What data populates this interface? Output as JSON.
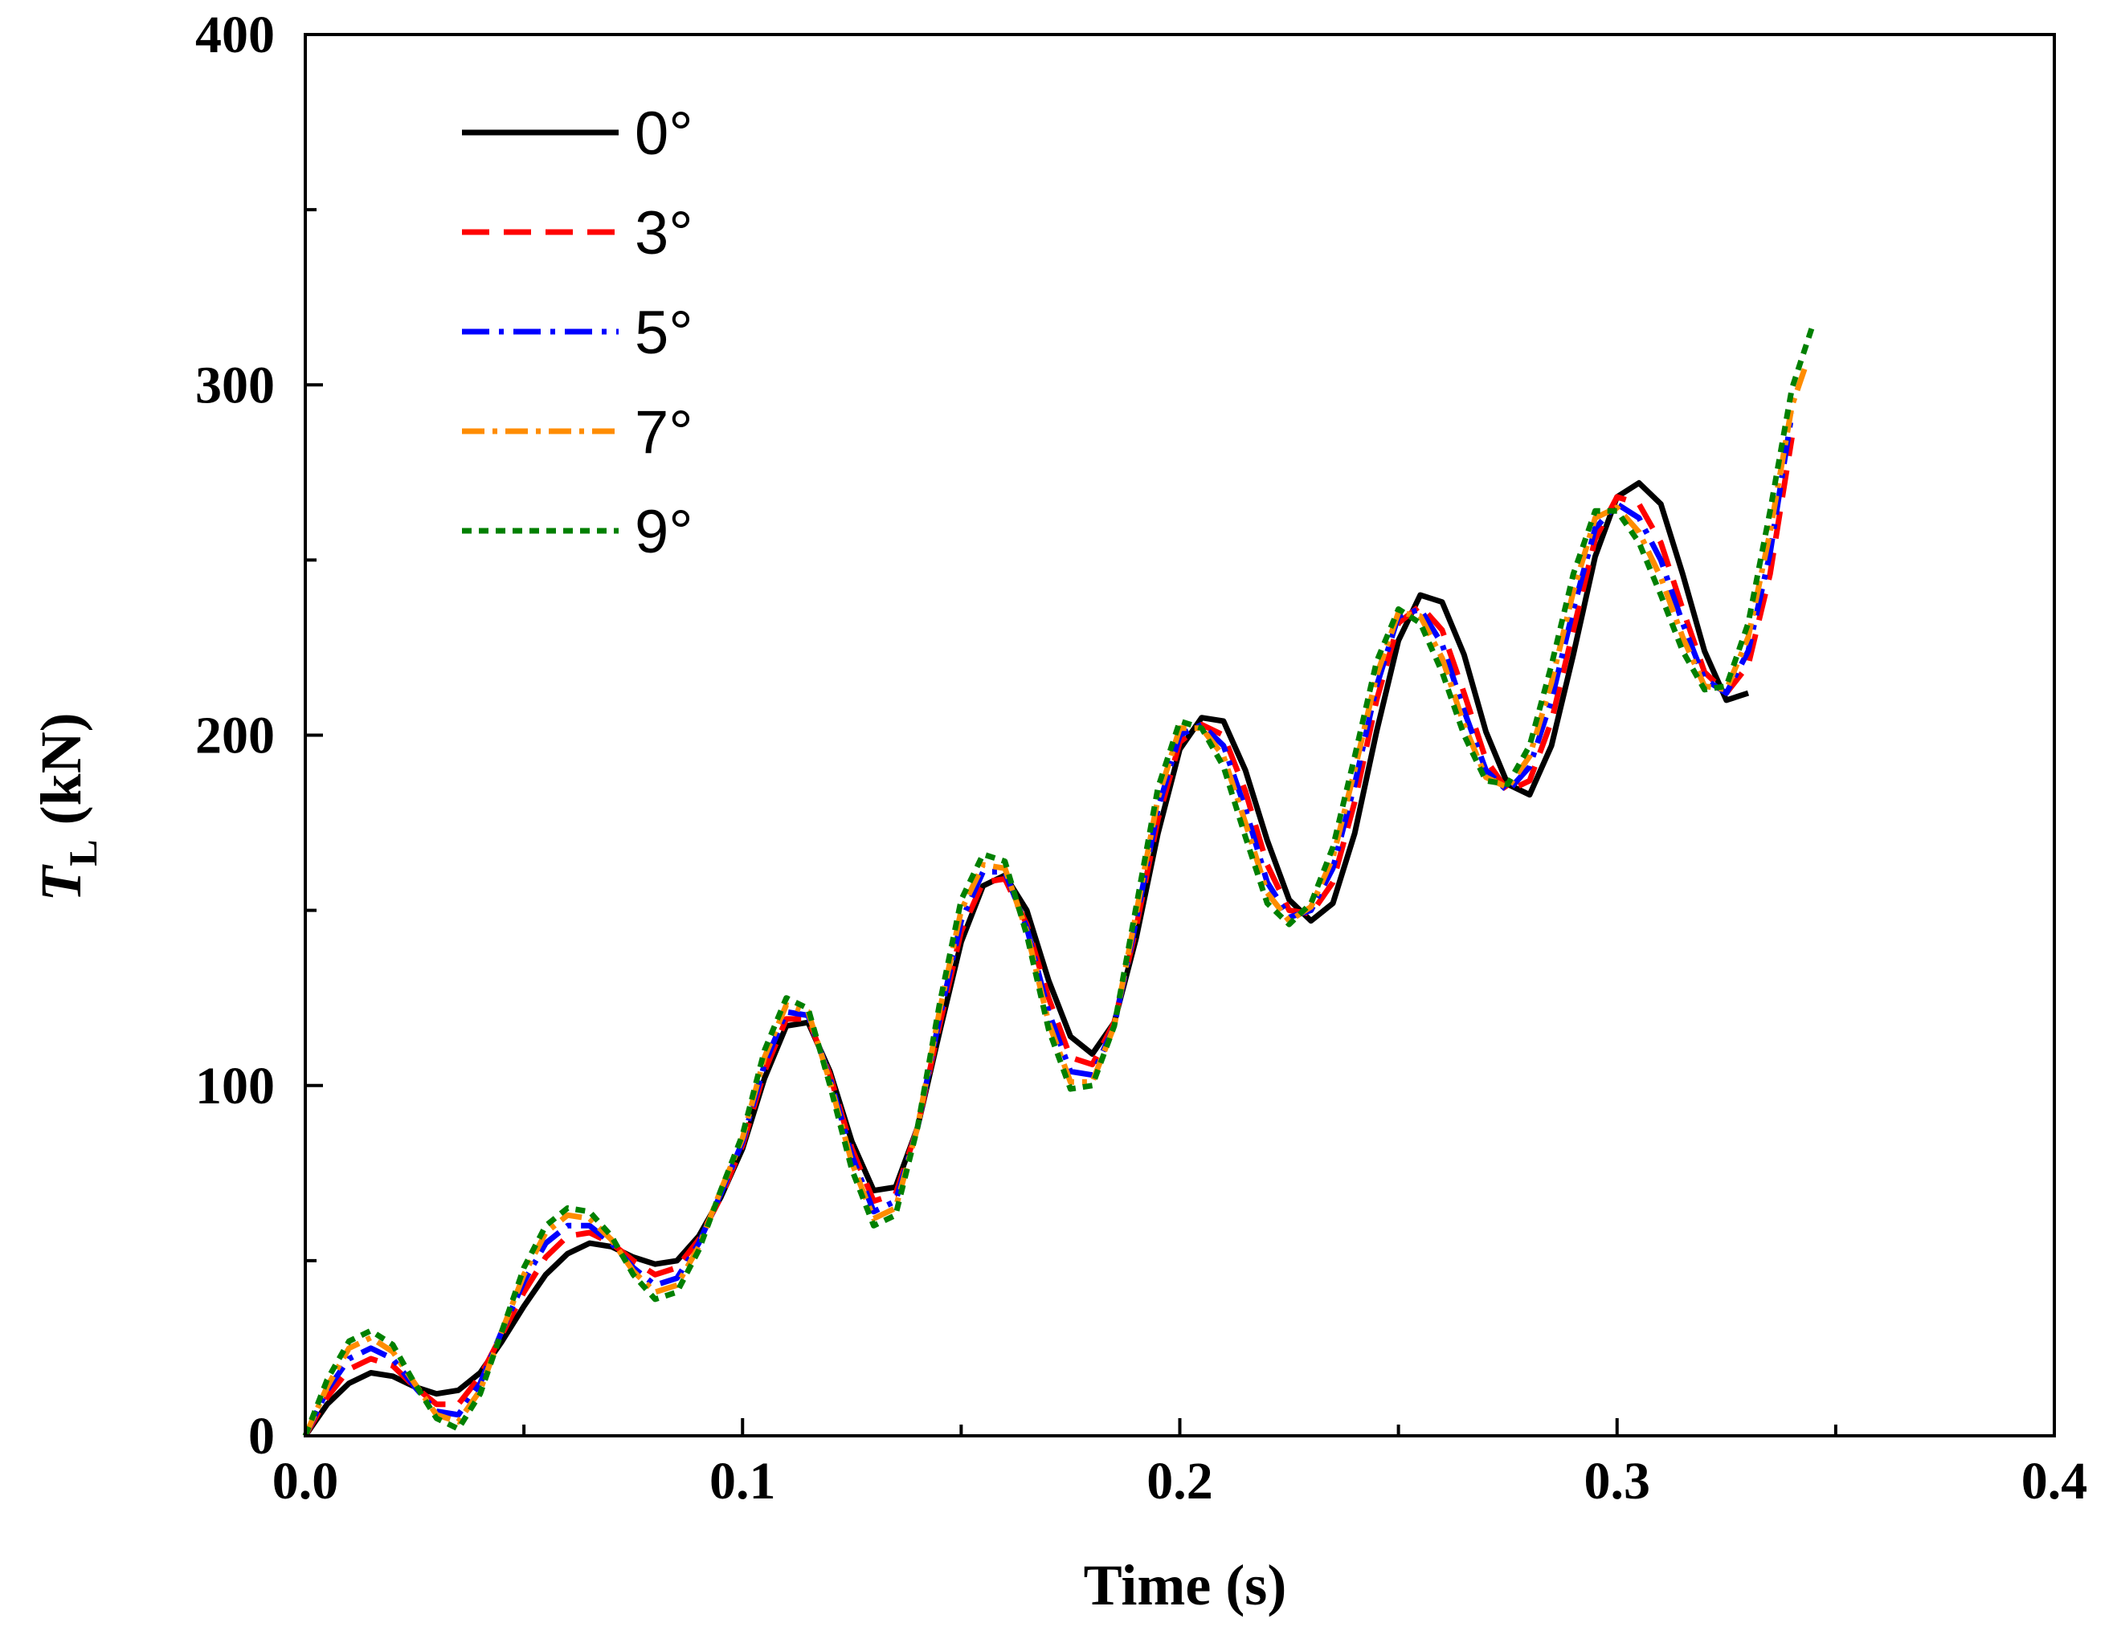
{
  "chart_data": {
    "type": "line",
    "title": "",
    "xlabel": "Time (s)",
    "ylabel_main": "T",
    "ylabel_sub": "L",
    "ylabel_unit": "(kN)",
    "xlim": [
      0.0,
      0.4
    ],
    "ylim": [
      0,
      400
    ],
    "xticks": [
      0.0,
      0.1,
      0.2,
      0.3,
      0.4
    ],
    "xtick_labels": [
      "0.0",
      "0.1",
      "0.2",
      "0.3",
      "0.4"
    ],
    "yticks": [
      0,
      100,
      200,
      300,
      400
    ],
    "ytick_labels": [
      "0",
      "100",
      "200",
      "300",
      "400"
    ],
    "grid": false,
    "legend_position": "top-left",
    "series": [
      {
        "name": "0°",
        "color": "#000000",
        "dash": "solid",
        "x": [
          0.0,
          0.005,
          0.01,
          0.015,
          0.02,
          0.025,
          0.03,
          0.035,
          0.04,
          0.045,
          0.05,
          0.055,
          0.06,
          0.065,
          0.07,
          0.075,
          0.08,
          0.085,
          0.09,
          0.095,
          0.1,
          0.105,
          0.11,
          0.115,
          0.12,
          0.125,
          0.13,
          0.135,
          0.14,
          0.145,
          0.15,
          0.155,
          0.16,
          0.165,
          0.17,
          0.175,
          0.18,
          0.185,
          0.19,
          0.195,
          0.2,
          0.205,
          0.21,
          0.215,
          0.22,
          0.225,
          0.23,
          0.235,
          0.24,
          0.245,
          0.25,
          0.255,
          0.26,
          0.265,
          0.27,
          0.275,
          0.28,
          0.285,
          0.29,
          0.295,
          0.3,
          0.305,
          0.31,
          0.315,
          0.32,
          0.325,
          0.33
        ],
        "y": [
          0,
          9,
          15,
          18,
          17,
          14,
          12,
          13,
          18,
          27,
          37,
          46,
          52,
          55,
          54,
          51,
          49,
          50,
          57,
          68,
          82,
          102,
          117,
          118,
          104,
          84,
          70,
          71,
          88,
          115,
          141,
          157,
          160,
          150,
          130,
          114,
          109,
          118,
          142,
          172,
          196,
          205,
          204,
          190,
          170,
          153,
          147,
          152,
          172,
          201,
          227,
          240,
          238,
          223,
          201,
          186,
          183,
          197,
          223,
          251,
          268,
          272,
          266,
          246,
          224,
          210,
          212
        ]
      },
      {
        "name": "3°",
        "color": "#ff0000",
        "dash": "34 18",
        "x": [
          0.0,
          0.005,
          0.01,
          0.015,
          0.02,
          0.025,
          0.03,
          0.035,
          0.04,
          0.045,
          0.05,
          0.055,
          0.06,
          0.065,
          0.07,
          0.075,
          0.08,
          0.085,
          0.09,
          0.095,
          0.1,
          0.105,
          0.11,
          0.115,
          0.12,
          0.125,
          0.13,
          0.135,
          0.14,
          0.145,
          0.15,
          0.155,
          0.16,
          0.165,
          0.17,
          0.175,
          0.18,
          0.185,
          0.19,
          0.195,
          0.2,
          0.205,
          0.21,
          0.215,
          0.22,
          0.225,
          0.23,
          0.235,
          0.24,
          0.245,
          0.25,
          0.255,
          0.26,
          0.265,
          0.27,
          0.275,
          0.28,
          0.285,
          0.29,
          0.295,
          0.3,
          0.305,
          0.31,
          0.315,
          0.32,
          0.325,
          0.33,
          0.335,
          0.34
        ],
        "y": [
          0,
          11,
          19,
          22,
          20,
          14,
          9,
          9,
          17,
          29,
          41,
          51,
          57,
          58,
          55,
          50,
          46,
          48,
          56,
          68,
          83,
          104,
          119,
          119,
          103,
          82,
          67,
          69,
          88,
          117,
          144,
          158,
          159,
          146,
          125,
          108,
          106,
          118,
          145,
          176,
          198,
          203,
          200,
          184,
          163,
          150,
          149,
          158,
          181,
          210,
          232,
          237,
          230,
          212,
          193,
          184,
          187,
          204,
          230,
          256,
          268,
          266,
          255,
          236,
          218,
          212,
          220,
          246,
          285
        ]
      },
      {
        "name": "5°",
        "color": "#0000ff",
        "dash": "34 12 6 12",
        "x": [
          0.0,
          0.005,
          0.01,
          0.015,
          0.02,
          0.025,
          0.03,
          0.035,
          0.04,
          0.045,
          0.05,
          0.055,
          0.06,
          0.065,
          0.07,
          0.075,
          0.08,
          0.085,
          0.09,
          0.095,
          0.1,
          0.105,
          0.11,
          0.115,
          0.12,
          0.125,
          0.13,
          0.135,
          0.14,
          0.145,
          0.15,
          0.155,
          0.16,
          0.165,
          0.17,
          0.175,
          0.18,
          0.185,
          0.19,
          0.195,
          0.2,
          0.205,
          0.21,
          0.215,
          0.22,
          0.225,
          0.23,
          0.235,
          0.24,
          0.245,
          0.25,
          0.255,
          0.26,
          0.265,
          0.27,
          0.275,
          0.28,
          0.285,
          0.29,
          0.295,
          0.3,
          0.305,
          0.31,
          0.315,
          0.32,
          0.325,
          0.33,
          0.335,
          0.34
        ],
        "y": [
          0,
          13,
          22,
          25,
          22,
          14,
          7,
          6,
          15,
          30,
          44,
          55,
          60,
          60,
          55,
          48,
          43,
          45,
          55,
          69,
          84,
          106,
          121,
          120,
          102,
          80,
          64,
          67,
          88,
          119,
          147,
          161,
          161,
          145,
          121,
          104,
          103,
          117,
          147,
          179,
          200,
          203,
          197,
          179,
          158,
          148,
          150,
          162,
          186,
          214,
          234,
          236,
          226,
          207,
          190,
          184,
          191,
          210,
          236,
          259,
          266,
          262,
          250,
          232,
          216,
          212,
          224,
          252,
          292
        ]
      },
      {
        "name": "7°",
        "color": "#ff8c00",
        "dash": "28 10 6 10",
        "x": [
          0.0,
          0.005,
          0.01,
          0.015,
          0.02,
          0.025,
          0.03,
          0.035,
          0.04,
          0.045,
          0.05,
          0.055,
          0.06,
          0.065,
          0.07,
          0.075,
          0.08,
          0.085,
          0.09,
          0.095,
          0.1,
          0.105,
          0.11,
          0.115,
          0.12,
          0.125,
          0.13,
          0.135,
          0.14,
          0.145,
          0.15,
          0.155,
          0.16,
          0.165,
          0.17,
          0.175,
          0.18,
          0.185,
          0.19,
          0.195,
          0.2,
          0.205,
          0.21,
          0.215,
          0.22,
          0.225,
          0.23,
          0.235,
          0.24,
          0.245,
          0.25,
          0.255,
          0.26,
          0.265,
          0.27,
          0.275,
          0.28,
          0.285,
          0.29,
          0.295,
          0.3,
          0.305,
          0.31,
          0.315,
          0.32,
          0.325,
          0.33,
          0.335,
          0.34,
          0.343
        ],
        "y": [
          0,
          14,
          25,
          28,
          24,
          15,
          6,
          4,
          13,
          30,
          46,
          58,
          63,
          62,
          56,
          47,
          41,
          43,
          54,
          70,
          85,
          108,
          123,
          121,
          101,
          78,
          62,
          65,
          88,
          121,
          150,
          163,
          162,
          144,
          118,
          101,
          101,
          117,
          149,
          182,
          202,
          202,
          194,
          175,
          155,
          147,
          151,
          165,
          190,
          217,
          235,
          234,
          222,
          203,
          188,
          185,
          194,
          215,
          241,
          262,
          265,
          258,
          245,
          228,
          214,
          213,
          228,
          258,
          294,
          305
        ]
      },
      {
        "name": "9°",
        "color": "#008000",
        "dash": "12 9",
        "x": [
          0.0,
          0.005,
          0.01,
          0.015,
          0.02,
          0.025,
          0.03,
          0.035,
          0.04,
          0.045,
          0.05,
          0.055,
          0.06,
          0.065,
          0.07,
          0.075,
          0.08,
          0.085,
          0.09,
          0.095,
          0.1,
          0.105,
          0.11,
          0.115,
          0.12,
          0.125,
          0.13,
          0.135,
          0.14,
          0.145,
          0.15,
          0.155,
          0.16,
          0.165,
          0.17,
          0.175,
          0.18,
          0.185,
          0.19,
          0.195,
          0.2,
          0.205,
          0.21,
          0.215,
          0.22,
          0.225,
          0.23,
          0.235,
          0.24,
          0.245,
          0.25,
          0.255,
          0.26,
          0.265,
          0.27,
          0.275,
          0.28,
          0.285,
          0.29,
          0.295,
          0.3,
          0.305,
          0.31,
          0.315,
          0.32,
          0.325,
          0.33,
          0.335,
          0.34,
          0.345
        ],
        "y": [
          0,
          16,
          27,
          30,
          26,
          15,
          5,
          2,
          12,
          30,
          48,
          60,
          65,
          64,
          57,
          46,
          39,
          41,
          53,
          70,
          86,
          110,
          125,
          122,
          100,
          76,
          60,
          63,
          88,
          123,
          153,
          166,
          164,
          143,
          116,
          99,
          100,
          117,
          151,
          185,
          204,
          202,
          191,
          171,
          152,
          146,
          152,
          168,
          194,
          221,
          236,
          232,
          218,
          200,
          187,
          186,
          197,
          220,
          246,
          264,
          264,
          255,
          240,
          224,
          213,
          214,
          232,
          264,
          299,
          318
        ]
      }
    ]
  }
}
